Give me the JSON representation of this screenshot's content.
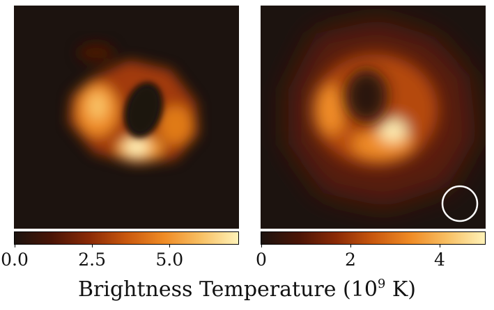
{
  "left_colorbar": {
    "ticks": [
      {
        "label": "0.0",
        "value": 0.0
      },
      {
        "label": "2.5",
        "value": 2.5
      },
      {
        "label": "5.0",
        "value": 5.0
      }
    ],
    "range": [
      0,
      7.2
    ]
  },
  "right_colorbar": {
    "ticks": [
      {
        "label": "0",
        "value": 0
      },
      {
        "label": "2",
        "value": 2
      },
      {
        "label": "4",
        "value": 4
      }
    ],
    "range": [
      0,
      5
    ]
  },
  "colorbar_label": {
    "prefix": "Brightness Temperature (10",
    "exponent": "9",
    "suffix": " K)"
  },
  "colors": {
    "background": "#1c130f",
    "colormap": [
      "#1c130f",
      "#4a1406",
      "#8a2a06",
      "#c9580e",
      "#ef8b25",
      "#f8c064",
      "#fff2b8"
    ]
  }
}
